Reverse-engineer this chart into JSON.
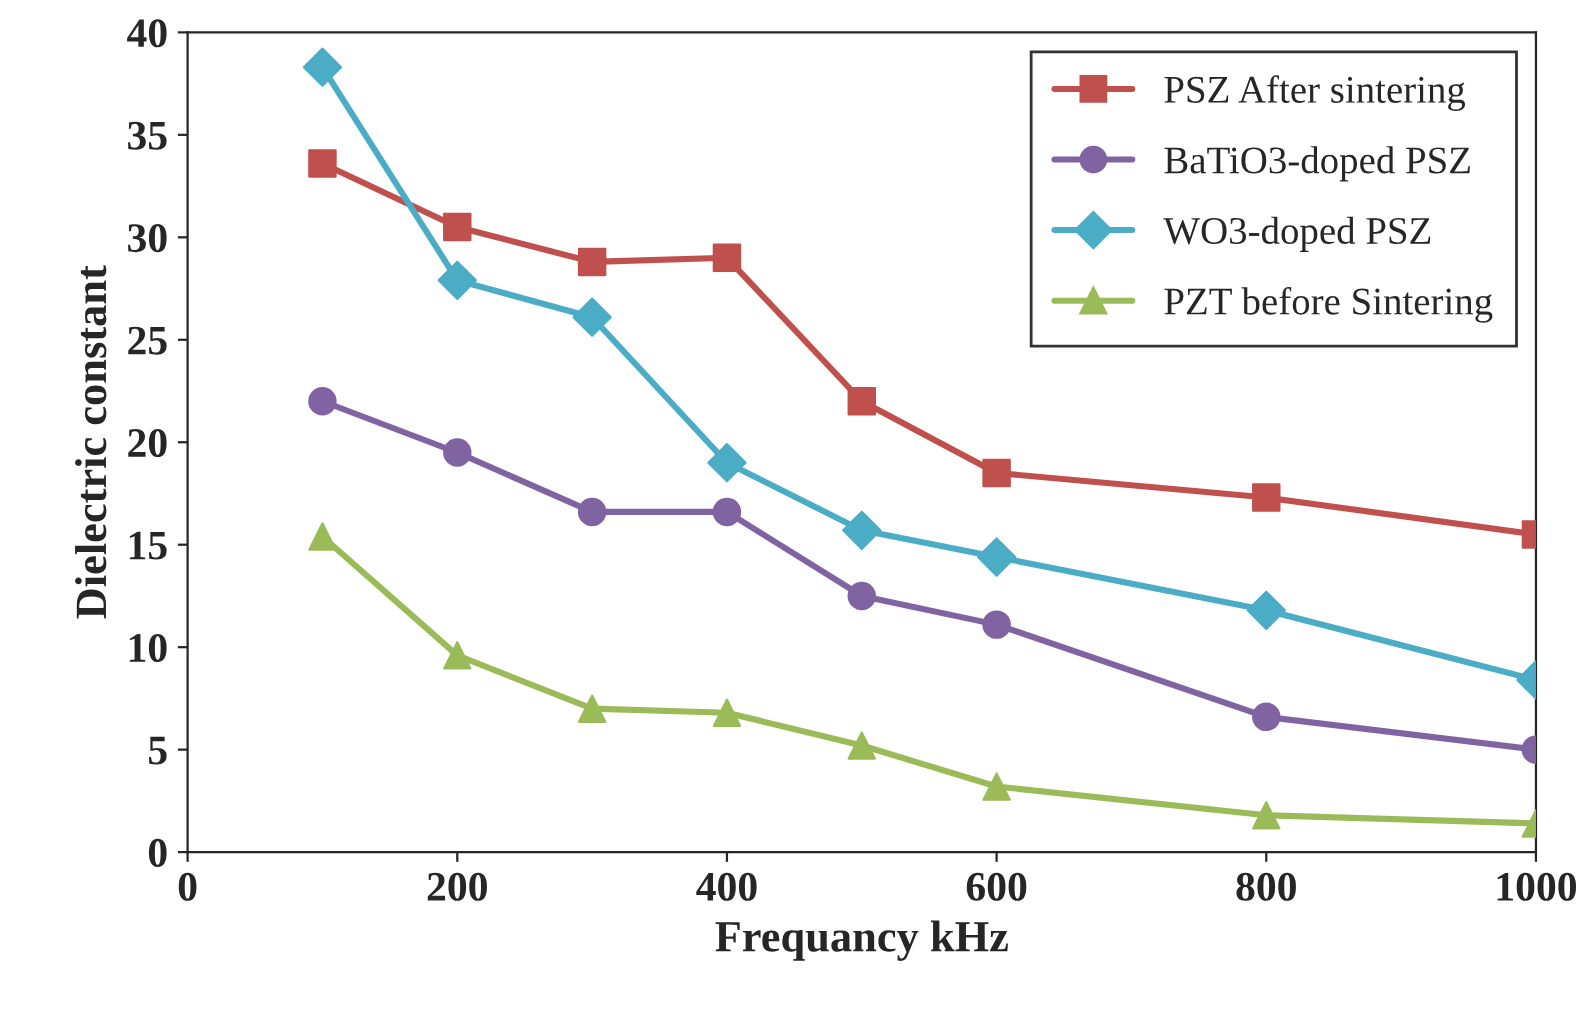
{
  "chart_data": {
    "type": "line",
    "xlabel": "Frequancy kHz",
    "ylabel": "Dielectric constant",
    "x": [
      100,
      200,
      300,
      400,
      500,
      600,
      800,
      1000
    ],
    "series": [
      {
        "name": "PSZ After sintering",
        "color": "#c0504d",
        "marker": "square",
        "values": [
          33.6,
          30.5,
          28.8,
          29.0,
          22.0,
          18.5,
          17.3,
          15.5
        ]
      },
      {
        "name": "BaTiO3-doped PSZ",
        "color": "#8064a2",
        "marker": "circle",
        "values": [
          22.0,
          19.5,
          16.6,
          16.6,
          12.5,
          11.1,
          6.6,
          5.0
        ]
      },
      {
        "name": "WO3-doped PSZ",
        "color": "#4bacc6",
        "marker": "diamond",
        "values": [
          38.3,
          27.9,
          26.1,
          19.0,
          15.7,
          14.4,
          11.8,
          8.4
        ]
      },
      {
        "name": "PZT before Sintering",
        "color": "#9bbb59",
        "marker": "triangle",
        "values": [
          15.4,
          9.6,
          7.0,
          6.8,
          5.2,
          3.2,
          1.8,
          1.4
        ]
      }
    ],
    "xlim": [
      0,
      1000
    ],
    "xticks": [
      0,
      200,
      400,
      600,
      800,
      1000
    ],
    "ylim": [
      0,
      40
    ],
    "yticks": [
      0,
      5,
      10,
      15,
      20,
      25,
      30,
      35,
      40
    ],
    "grid": false,
    "legend": "top right",
    "line_style": "solid"
  }
}
